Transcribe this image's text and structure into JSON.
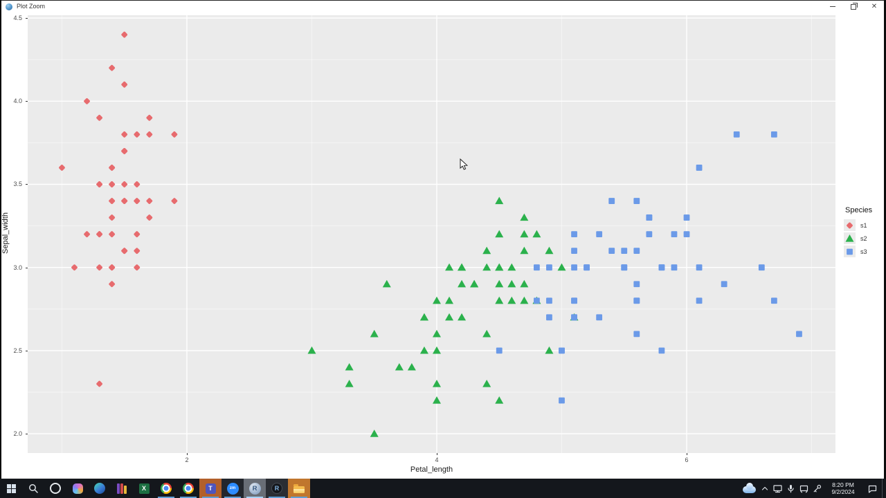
{
  "window": {
    "title": "Plot Zoom",
    "icon": "r-sphere-icon",
    "controls": [
      "minimize",
      "restore",
      "close"
    ]
  },
  "chart_data": {
    "type": "scatter",
    "title": "",
    "xlabel": "Petal_length",
    "ylabel": "Sepal_width",
    "xlim": [
      0.726,
      7.191
    ],
    "ylim": [
      1.884,
      4.517
    ],
    "grid": "on",
    "panel_bg": "#ebebeb",
    "grid_major_color": "#ffffff",
    "grid_minor_color": "rgba(255,255,255,0.6)",
    "x_ticks": [
      {
        "v": 2,
        "label": "2"
      },
      {
        "v": 4,
        "label": "4"
      },
      {
        "v": 6,
        "label": "6"
      }
    ],
    "y_ticks": [
      {
        "v": 4.5,
        "label": "4.5"
      },
      {
        "v": 4.0,
        "label": "4.0"
      },
      {
        "v": 3.5,
        "label": "3.5"
      },
      {
        "v": 3.0,
        "label": "3.0"
      },
      {
        "v": 2.5,
        "label": "2.5"
      },
      {
        "v": 2.0,
        "label": "2.0"
      }
    ],
    "x_minor_ticks": [
      1,
      3,
      5,
      7
    ],
    "y_minor_ticks": [
      2.25,
      2.75,
      3.25,
      3.75,
      4.25
    ],
    "legend": {
      "title": "Species",
      "position": "right",
      "entries": [
        {
          "label": "s1",
          "shape": "diamond",
          "color": "#e76b6e"
        },
        {
          "label": "s2",
          "shape": "triangle",
          "color": "#2bb14c"
        },
        {
          "label": "s3",
          "shape": "square",
          "color": "#6b9ae8"
        }
      ]
    },
    "series": [
      {
        "name": "s1",
        "shape": "diamond",
        "color": "#e76b6e",
        "points": [
          [
            1.4,
            3.5
          ],
          [
            1.4,
            3.0
          ],
          [
            1.3,
            3.2
          ],
          [
            1.5,
            3.1
          ],
          [
            1.4,
            3.6
          ],
          [
            1.7,
            3.9
          ],
          [
            1.4,
            3.4
          ],
          [
            1.5,
            3.4
          ],
          [
            1.4,
            2.9
          ],
          [
            1.5,
            3.1
          ],
          [
            1.5,
            3.7
          ],
          [
            1.6,
            3.4
          ],
          [
            1.4,
            3.0
          ],
          [
            1.1,
            3.0
          ],
          [
            1.2,
            4.0
          ],
          [
            1.5,
            4.4
          ],
          [
            1.3,
            3.9
          ],
          [
            1.4,
            3.5
          ],
          [
            1.7,
            3.8
          ],
          [
            1.5,
            3.8
          ],
          [
            1.7,
            3.4
          ],
          [
            1.5,
            3.7
          ],
          [
            1.0,
            3.6
          ],
          [
            1.7,
            3.3
          ],
          [
            1.9,
            3.4
          ],
          [
            1.6,
            3.0
          ],
          [
            1.6,
            3.4
          ],
          [
            1.5,
            3.5
          ],
          [
            1.4,
            3.4
          ],
          [
            1.6,
            3.2
          ],
          [
            1.6,
            3.1
          ],
          [
            1.5,
            3.4
          ],
          [
            1.5,
            4.1
          ],
          [
            1.4,
            4.2
          ],
          [
            1.5,
            3.1
          ],
          [
            1.2,
            3.2
          ],
          [
            1.3,
            3.5
          ],
          [
            1.4,
            3.6
          ],
          [
            1.3,
            3.0
          ],
          [
            1.5,
            3.4
          ],
          [
            1.3,
            3.5
          ],
          [
            1.3,
            2.3
          ],
          [
            1.3,
            3.2
          ],
          [
            1.6,
            3.5
          ],
          [
            1.9,
            3.8
          ],
          [
            1.4,
            3.0
          ],
          [
            1.6,
            3.8
          ],
          [
            1.4,
            3.2
          ],
          [
            1.5,
            3.7
          ],
          [
            1.4,
            3.3
          ]
        ]
      },
      {
        "name": "s2",
        "shape": "triangle",
        "color": "#2bb14c",
        "points": [
          [
            4.7,
            3.2
          ],
          [
            4.5,
            3.2
          ],
          [
            4.9,
            3.1
          ],
          [
            4.0,
            2.3
          ],
          [
            4.6,
            2.8
          ],
          [
            4.5,
            2.8
          ],
          [
            4.7,
            3.3
          ],
          [
            3.3,
            2.4
          ],
          [
            4.6,
            2.9
          ],
          [
            3.9,
            2.7
          ],
          [
            3.5,
            2.0
          ],
          [
            4.2,
            3.0
          ],
          [
            4.0,
            2.2
          ],
          [
            4.7,
            2.9
          ],
          [
            3.6,
            2.9
          ],
          [
            4.4,
            3.1
          ],
          [
            4.5,
            3.0
          ],
          [
            4.1,
            2.7
          ],
          [
            4.5,
            2.2
          ],
          [
            3.9,
            2.5
          ],
          [
            4.8,
            3.2
          ],
          [
            4.0,
            2.8
          ],
          [
            4.9,
            2.5
          ],
          [
            4.7,
            2.8
          ],
          [
            4.3,
            2.9
          ],
          [
            4.4,
            3.0
          ],
          [
            4.8,
            2.8
          ],
          [
            5.0,
            3.0
          ],
          [
            4.5,
            2.9
          ],
          [
            3.5,
            2.6
          ],
          [
            3.8,
            2.4
          ],
          [
            3.7,
            2.4
          ],
          [
            3.9,
            2.7
          ],
          [
            5.1,
            2.7
          ],
          [
            4.5,
            3.0
          ],
          [
            4.5,
            3.4
          ],
          [
            4.7,
            3.1
          ],
          [
            4.4,
            2.3
          ],
          [
            4.1,
            3.0
          ],
          [
            4.0,
            2.5
          ],
          [
            4.4,
            2.6
          ],
          [
            4.6,
            3.0
          ],
          [
            4.0,
            2.6
          ],
          [
            3.3,
            2.3
          ],
          [
            4.2,
            2.7
          ],
          [
            4.2,
            3.0
          ],
          [
            4.2,
            2.9
          ],
          [
            4.3,
            2.9
          ],
          [
            3.0,
            2.5
          ],
          [
            4.1,
            2.8
          ]
        ]
      },
      {
        "name": "s3",
        "shape": "square",
        "color": "#6b9ae8",
        "points": [
          [
            6.0,
            3.3
          ],
          [
            5.1,
            2.7
          ],
          [
            5.9,
            3.0
          ],
          [
            5.6,
            2.9
          ],
          [
            5.8,
            3.0
          ],
          [
            6.6,
            3.0
          ],
          [
            4.5,
            2.5
          ],
          [
            6.3,
            2.9
          ],
          [
            5.8,
            2.5
          ],
          [
            6.1,
            3.6
          ],
          [
            5.1,
            3.2
          ],
          [
            5.3,
            2.7
          ],
          [
            5.5,
            3.0
          ],
          [
            5.0,
            2.5
          ],
          [
            5.1,
            2.8
          ],
          [
            5.3,
            3.2
          ],
          [
            5.5,
            3.0
          ],
          [
            6.7,
            3.8
          ],
          [
            6.9,
            2.6
          ],
          [
            5.0,
            2.2
          ],
          [
            5.7,
            3.2
          ],
          [
            4.9,
            2.8
          ],
          [
            6.7,
            2.8
          ],
          [
            4.9,
            2.7
          ],
          [
            5.7,
            3.3
          ],
          [
            6.0,
            3.2
          ],
          [
            4.8,
            2.8
          ],
          [
            4.9,
            3.0
          ],
          [
            5.6,
            2.8
          ],
          [
            5.8,
            3.0
          ],
          [
            6.1,
            2.8
          ],
          [
            6.4,
            3.8
          ],
          [
            5.6,
            2.8
          ],
          [
            5.1,
            2.8
          ],
          [
            5.6,
            2.6
          ],
          [
            6.1,
            3.0
          ],
          [
            5.6,
            3.4
          ],
          [
            5.5,
            3.1
          ],
          [
            4.8,
            3.0
          ],
          [
            5.4,
            3.1
          ],
          [
            5.6,
            3.1
          ],
          [
            5.1,
            3.1
          ],
          [
            5.1,
            2.7
          ],
          [
            5.9,
            3.2
          ],
          [
            5.7,
            3.3
          ],
          [
            5.2,
            3.0
          ],
          [
            5.0,
            2.5
          ],
          [
            5.2,
            3.0
          ],
          [
            5.4,
            3.4
          ],
          [
            5.1,
            3.0
          ]
        ]
      }
    ]
  },
  "taskbar": {
    "items": [
      {
        "icon": "windows-start"
      },
      {
        "icon": "search"
      },
      {
        "icon": "cortana"
      },
      {
        "icon": "copilot"
      },
      {
        "icon": "edge"
      },
      {
        "icon": "winrar"
      },
      {
        "icon": "excel",
        "label": "X"
      },
      {
        "icon": "chrome",
        "open": true
      },
      {
        "icon": "chrome",
        "open": true
      },
      {
        "icon": "teams",
        "label": "T",
        "open": true,
        "bg": "#b2602a"
      },
      {
        "icon": "zoom",
        "label": "zm",
        "open": true,
        "bg": "#23262c"
      },
      {
        "icon": "r",
        "label": "R",
        "open": true,
        "active": true,
        "bg": "#696e76"
      },
      {
        "icon": "rstudio",
        "label": "R",
        "open": true,
        "bg": "#2a2d33"
      },
      {
        "icon": "explorer",
        "open": true,
        "bg": "#c0762d"
      }
    ],
    "tray": [
      "onedrive",
      "chevron-up",
      "display",
      "microphone",
      "cast",
      "key"
    ],
    "clock": {
      "time": "8:20 PM",
      "date": "9/2/2024"
    },
    "action_center_icon": "notification-bubble"
  }
}
